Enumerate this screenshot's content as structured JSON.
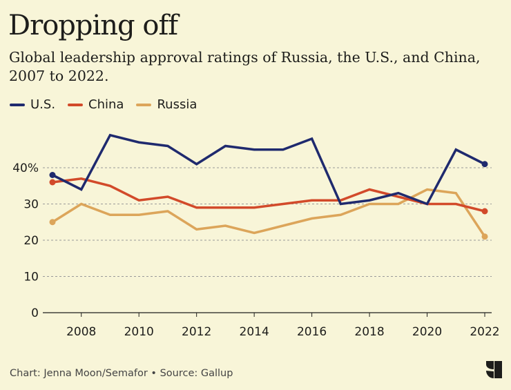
{
  "title": "Dropping off",
  "subtitle": "Global leadership approval ratings of Russia, the U.S., and China, 2007 to 2022.",
  "footer": "Chart: Jenna Moon/Semafor • Source: Gallup",
  "logo_text": "S",
  "chart_data": {
    "type": "line",
    "x": [
      2007,
      2008,
      2009,
      2010,
      2011,
      2012,
      2013,
      2014,
      2015,
      2016,
      2017,
      2018,
      2019,
      2020,
      2021,
      2022
    ],
    "xticks": [
      "2008",
      "2010",
      "2012",
      "2014",
      "2016",
      "2018",
      "2020",
      "2022"
    ],
    "yticks": [
      "0",
      "10",
      "20",
      "30",
      "40%"
    ],
    "ylim": [
      0,
      50
    ],
    "xlim": [
      2007,
      2022
    ],
    "grid": "horizontal dashed",
    "legend": "top-left",
    "series": [
      {
        "name": "U.S.",
        "color": "#1f2a6e",
        "values": [
          38,
          34,
          49,
          47,
          46,
          41,
          46,
          45,
          45,
          48,
          30,
          31,
          33,
          30,
          45,
          41
        ]
      },
      {
        "name": "China",
        "color": "#d24a2a",
        "values": [
          36,
          37,
          35,
          31,
          32,
          29,
          29,
          29,
          30,
          31,
          31,
          34,
          32,
          30,
          30,
          28
        ]
      },
      {
        "name": "Russia",
        "color": "#dca55a",
        "values": [
          25,
          30,
          27,
          27,
          28,
          23,
          24,
          22,
          24,
          26,
          27,
          30,
          30,
          34,
          33,
          21
        ]
      }
    ]
  }
}
